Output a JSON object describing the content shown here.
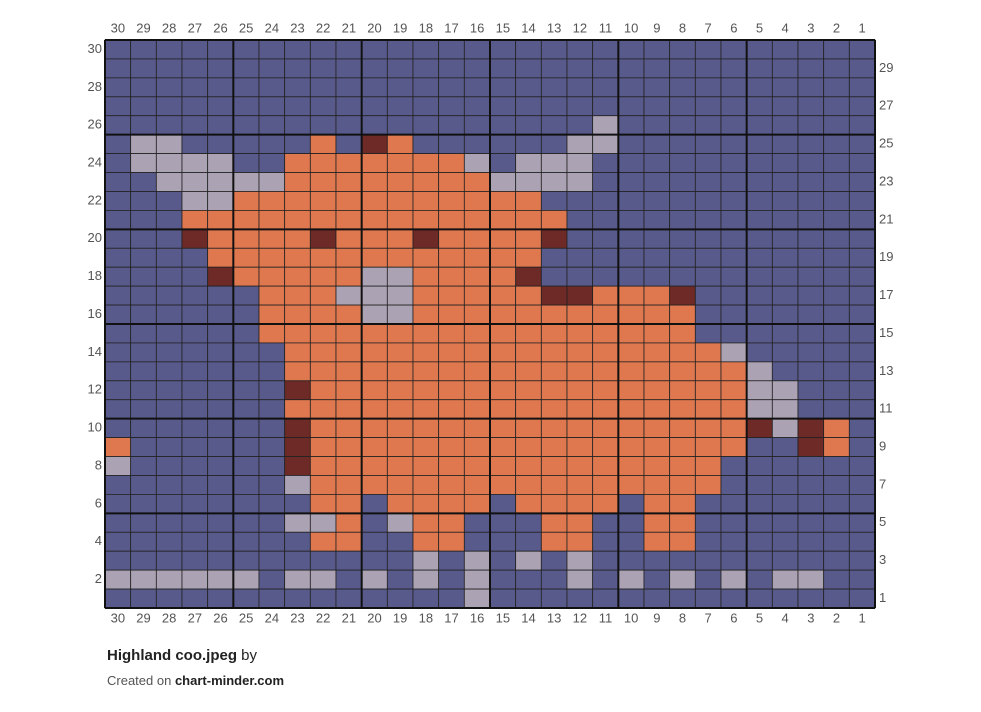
{
  "grid": {
    "columns": [
      30,
      29,
      28,
      27,
      26,
      25,
      24,
      23,
      22,
      21,
      20,
      19,
      18,
      17,
      16,
      15,
      14,
      13,
      12,
      11,
      10,
      9,
      8,
      7,
      6,
      5,
      4,
      3,
      2,
      1
    ],
    "rows": [
      30,
      29,
      28,
      27,
      26,
      25,
      24,
      23,
      22,
      21,
      20,
      19,
      18,
      17,
      16,
      15,
      14,
      13,
      12,
      11,
      10,
      9,
      8,
      7,
      6,
      5,
      4,
      3,
      2,
      1
    ],
    "palette": {
      "B": "#585a8c",
      "O": "#e0784f",
      "G": "#aba2b3",
      "R": "#6e2a26"
    },
    "cells": [
      "BBBBBBBBBBBBBBBBBBBBBBBBBBBBBB",
      "BBBBBBBBBBBBBBBBBBBBBBBBBBBBBB",
      "BBBBBBBBBBBBBBBBBBBBBBBBBBBBBB",
      "BBBBBBBBBBBBBBBBBBBBBBBBBBBBBB",
      "BBBBBBBBBBBBBBBBBBBGBBBBBBBBBB",
      "BGGBBBBBOBROBBBBBBGGBBBBBBBBBB",
      "BGGGGBBOOOOOOOGBGGGBBBBBBBBBBB",
      "BBGGGGGOOOOOOOOGGGGBBBBBBBBBBB",
      "BBBGGOOOOOOOOOOOOBBBBBBBBBBBBB",
      "BBBOOOOOOOOOOOOOOOBBBBBBBBBBBB",
      "BBBROOOOROOOROOOORBBBBBBBBBBBB",
      "BBBBOOOOOOOOOOOOOBBBBBBBBBBBBB",
      "BBBBROOOOOGGOOOORBBBBBBBBBBBBB",
      "BBBBBBOOOGGGOOOOORROOORBBBBBBB",
      "BBBBBBOOOOGGOOOOOOOOOOOBBBBBBB",
      "BBBBBBOOOOOOOOOOOOOOOOOBBBBBBB",
      "BBBBBBBOOOOOOOOOOOOOOOOOGBBBBB",
      "BBBBBBBOOOOOOOOOOOOOOOOOOGBBBB",
      "BBBBBBBROOOOOOOOOOOOOOOOOGGBBB",
      "BBBBBBBOOOOOOOOOOOOOOOOOOGGBBB",
      "BBBBBBBROOOOOOOOOOOOOOOOORGROB",
      "OBBBBBBROOOOOOOOOOOOOOOOOBBROB",
      "GBBBBBBROOOOOOOOOOOOOOOOBBBBBB",
      "BBBBBBBGOOOOOOOOOOOOOOOOBBBBBB",
      "BBBBBBBBOOBOOOOBOOOOBOOBBBBBBB",
      "BBBBBBBGGOBGOOBBBOOBBOOBBBBBBB",
      "BBBBBBBBOOBBOOBBBOOBBOOBBBBBBB",
      "BBBBBBBBBBBBGBGBGBGBBBBBBBBBBB",
      "GGGGGGBGGBGBGBGBBBGBGBGBGBGGBB",
      "BBBBBBBBBBBBBBGBBBBBBBBBBBBBBB"
    ]
  },
  "footer": {
    "title": "Highland coo.jpeg",
    "by": "by",
    "created": "Created on",
    "site": "chart-minder.com"
  }
}
